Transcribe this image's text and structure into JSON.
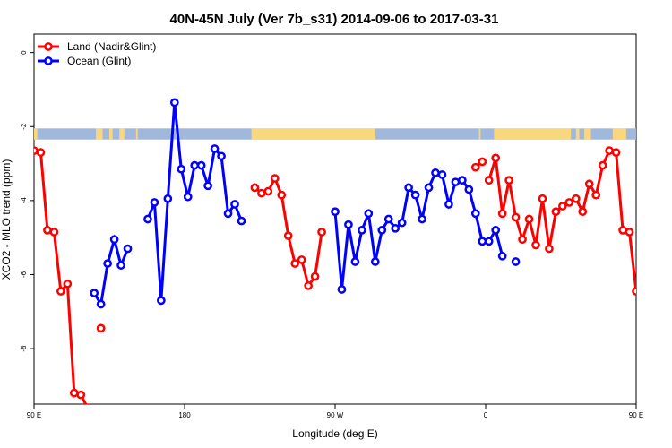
{
  "chart_data": {
    "type": "line",
    "title": "40N-45N July (Ver 7b_s31)   2014-09-06 to 2017-03-31",
    "xlabel": "Longitude (deg E)",
    "ylabel": "XCO2 - MLO trend (ppm)",
    "xlim": [
      90,
      450
    ],
    "ylim": [
      -9.5,
      0.5
    ],
    "x_ticks": [
      {
        "value": 90,
        "label": "90 E"
      },
      {
        "value": 180,
        "label": "180"
      },
      {
        "value": 270,
        "label": "90 W"
      },
      {
        "value": 360,
        "label": "0"
      },
      {
        "value": 450,
        "label": "90 E"
      },
      {
        "value": 540,
        "label": "180"
      }
    ],
    "y_ticks": [
      {
        "value": 0,
        "label": "0"
      },
      {
        "value": -2,
        "label": "-2"
      },
      {
        "value": -4,
        "label": "-4"
      },
      {
        "value": -6,
        "label": "-6"
      },
      {
        "value": -8,
        "label": "-8"
      }
    ],
    "legend_position": "top-left",
    "grid": false,
    "land_sea_band": {
      "y_range": [
        -2.35,
        -2.05
      ],
      "ocean_color": "#9fb8dc",
      "land_color": "#f9d77e",
      "land_segments": [
        [
          90,
          92
        ],
        [
          127,
          131
        ],
        [
          135,
          137
        ],
        [
          141,
          144
        ],
        [
          151,
          152
        ],
        [
          220,
          294
        ],
        [
          356,
          357
        ],
        [
          365,
          411
        ],
        [
          414,
          416
        ],
        [
          419,
          423
        ],
        [
          436,
          444
        ]
      ]
    },
    "series": [
      {
        "name": "Land (Nadir&Glint)",
        "color": "#ff0000",
        "points": [
          [
            90,
            -2.65
          ],
          [
            94,
            -2.7
          ],
          [
            98,
            -4.8
          ],
          [
            102,
            -4.85
          ],
          [
            106,
            -6.45
          ],
          [
            110,
            -6.25
          ],
          [
            114,
            -9.2
          ],
          [
            118,
            -9.25
          ],
          [
            122,
            -9.6
          ],
          null,
          [
            130,
            -7.45
          ],
          null,
          [
            222,
            -3.65
          ],
          [
            226,
            -3.8
          ],
          [
            230,
            -3.75
          ],
          [
            234,
            -3.4
          ],
          [
            238,
            -3.85
          ],
          [
            242,
            -4.95
          ],
          [
            246,
            -5.7
          ],
          [
            250,
            -5.6
          ],
          [
            254,
            -6.3
          ],
          [
            258,
            -6.05
          ],
          [
            262,
            -4.85
          ],
          null,
          [
            354,
            -3.1
          ],
          [
            358,
            -2.95
          ],
          null,
          [
            362,
            -3.45
          ],
          [
            366,
            -2.85
          ],
          [
            370,
            -4.35
          ],
          [
            374,
            -3.45
          ],
          [
            378,
            -4.45
          ],
          [
            382,
            -5.05
          ],
          [
            386,
            -4.5
          ],
          [
            390,
            -5.2
          ],
          [
            394,
            -3.95
          ],
          [
            398,
            -5.3
          ],
          [
            402,
            -4.3
          ],
          [
            406,
            -4.15
          ],
          [
            410,
            -4.05
          ],
          [
            414,
            -3.95
          ],
          [
            418,
            -4.3
          ],
          [
            422,
            -3.55
          ],
          [
            426,
            -3.85
          ],
          [
            430,
            -3.05
          ],
          [
            434,
            -2.65
          ],
          [
            438,
            -2.7
          ],
          [
            442,
            -4.8
          ],
          [
            446,
            -4.85
          ],
          [
            450,
            -6.45
          ]
        ]
      },
      {
        "name": "Ocean (Glint)",
        "color": "#0000ff",
        "points": [
          [
            126,
            -6.5
          ],
          [
            130,
            -6.8
          ],
          [
            134,
            -5.7
          ],
          [
            138,
            -5.05
          ],
          [
            142,
            -5.75
          ],
          [
            146,
            -5.3
          ],
          null,
          [
            158,
            -4.5
          ],
          [
            162,
            -4.05
          ],
          [
            166,
            -6.7
          ],
          [
            170,
            -3.95
          ],
          [
            174,
            -1.35
          ],
          [
            178,
            -3.15
          ],
          [
            182,
            -3.9
          ],
          [
            186,
            -3.05
          ],
          [
            190,
            -3.05
          ],
          [
            194,
            -3.6
          ],
          [
            198,
            -2.6
          ],
          [
            202,
            -2.8
          ],
          [
            206,
            -4.35
          ],
          [
            210,
            -4.1
          ],
          [
            214,
            -4.55
          ],
          null,
          [
            270,
            -4.3
          ],
          [
            274,
            -6.4
          ],
          [
            278,
            -4.65
          ],
          [
            282,
            -5.65
          ],
          [
            286,
            -4.8
          ],
          [
            290,
            -4.35
          ],
          [
            294,
            -5.65
          ],
          [
            298,
            -4.8
          ],
          [
            302,
            -4.5
          ],
          [
            306,
            -4.75
          ],
          [
            310,
            -4.6
          ],
          [
            314,
            -3.65
          ],
          [
            318,
            -3.85
          ],
          [
            322,
            -4.5
          ],
          [
            326,
            -3.65
          ],
          [
            330,
            -3.25
          ],
          [
            334,
            -3.3
          ],
          [
            338,
            -4.1
          ],
          [
            342,
            -3.5
          ],
          [
            346,
            -3.45
          ],
          [
            350,
            -3.7
          ],
          [
            354,
            -4.35
          ],
          [
            358,
            -5.1
          ],
          [
            362,
            -5.1
          ],
          [
            366,
            -4.8
          ],
          [
            370,
            -5.5
          ],
          null,
          [
            378,
            -5.65
          ]
        ]
      }
    ]
  }
}
